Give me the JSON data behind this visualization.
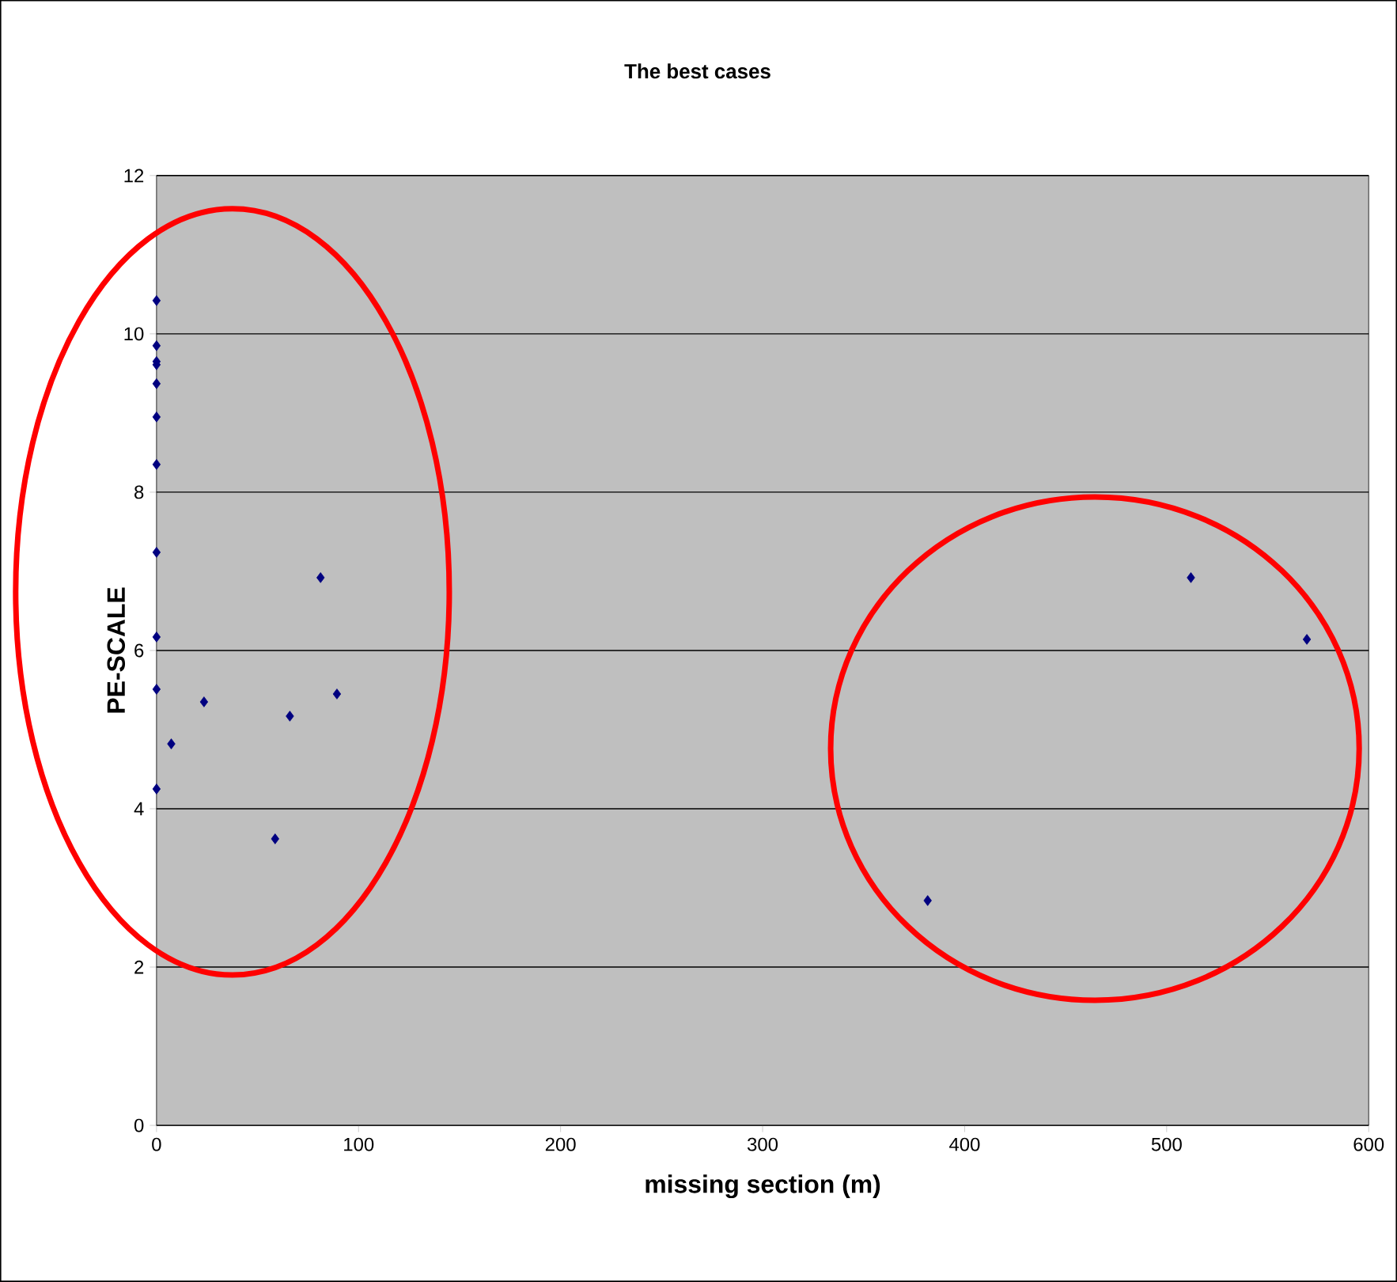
{
  "chart_data": {
    "type": "scatter",
    "title": "The best cases",
    "xlabel": "missing section (m)",
    "ylabel": "PE-SCALE",
    "x": [
      0,
      0,
      0,
      0,
      0,
      0,
      0,
      0,
      0,
      0,
      0,
      7.3,
      23.5,
      58.7,
      66,
      81.2,
      89.3,
      381.7,
      512,
      569.4
    ],
    "series": [
      {
        "color": "#000080",
        "values": [
          10.42,
          9.85,
          9.65,
          9.61,
          9.37,
          8.95,
          8.35,
          7.24,
          6.17,
          5.51,
          4.25,
          4.82,
          5.35,
          3.62,
          5.17,
          6.92,
          5.45,
          2.84,
          6.92,
          6.14
        ]
      }
    ],
    "xlim": [
      0,
      600
    ],
    "ylim": [
      0,
      12
    ],
    "xticks": [
      0,
      100,
      200,
      300,
      400,
      500,
      600
    ],
    "yticks": [
      0,
      2,
      4,
      6,
      8,
      10,
      12
    ],
    "grid": "y",
    "marker": "diamond"
  }
}
